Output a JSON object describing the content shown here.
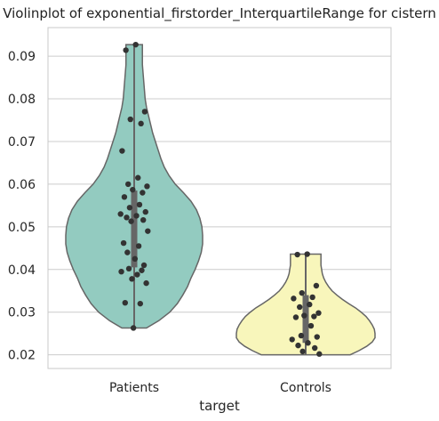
{
  "chart_data": {
    "type": "violin",
    "title": "Violinplot of exponential_firstorder_InterquartileRange for cistern",
    "xlabel": "target",
    "ylabel": "",
    "categories": [
      "Patients",
      "Controls"
    ],
    "ylim": [
      0.0168,
      0.0967
    ],
    "yticks": [
      0.02,
      0.03,
      0.04,
      0.05,
      0.06,
      0.07,
      0.08,
      0.09
    ],
    "ytick_labels": [
      "0.02",
      "0.03",
      "0.04",
      "0.05",
      "0.06",
      "0.07",
      "0.08",
      "0.09"
    ],
    "grid": "horizontal",
    "colors": {
      "Patients": "#93cbc0",
      "Controls": "#f8f6bb",
      "outline": "#666666",
      "points": "#333333",
      "grid": "#cccccc"
    },
    "series": [
      {
        "category": "Patients",
        "density_profile": [
          [
            0.0263,
            0.18
          ],
          [
            0.028,
            0.36
          ],
          [
            0.03,
            0.52
          ],
          [
            0.032,
            0.63
          ],
          [
            0.034,
            0.71
          ],
          [
            0.036,
            0.78
          ],
          [
            0.038,
            0.83
          ],
          [
            0.04,
            0.89
          ],
          [
            0.042,
            0.94
          ],
          [
            0.044,
            0.98
          ],
          [
            0.046,
            1.0
          ],
          [
            0.048,
            1.0
          ],
          [
            0.05,
            0.99
          ],
          [
            0.052,
            0.96
          ],
          [
            0.054,
            0.91
          ],
          [
            0.056,
            0.83
          ],
          [
            0.058,
            0.72
          ],
          [
            0.06,
            0.6
          ],
          [
            0.062,
            0.51
          ],
          [
            0.064,
            0.44
          ],
          [
            0.066,
            0.39
          ],
          [
            0.068,
            0.35
          ],
          [
            0.07,
            0.31
          ],
          [
            0.072,
            0.27
          ],
          [
            0.074,
            0.24
          ],
          [
            0.076,
            0.21
          ],
          [
            0.078,
            0.18
          ],
          [
            0.08,
            0.16
          ],
          [
            0.082,
            0.15
          ],
          [
            0.084,
            0.14
          ],
          [
            0.086,
            0.13
          ],
          [
            0.088,
            0.12
          ],
          [
            0.09,
            0.12
          ],
          [
            0.0927,
            0.12
          ]
        ],
        "whisker": [
          0.0263,
          0.0927
        ],
        "iqr": [
          0.0405,
          0.0585
        ],
        "points": [
          0.0927,
          0.0914,
          0.077,
          0.0752,
          0.0742,
          0.0678,
          0.0615,
          0.06,
          0.0595,
          0.0587,
          0.058,
          0.057,
          0.0552,
          0.0545,
          0.0535,
          0.053,
          0.0526,
          0.0522,
          0.0516,
          0.0513,
          0.049,
          0.0462,
          0.0455,
          0.044,
          0.0425,
          0.041,
          0.0402,
          0.0398,
          0.0395,
          0.0388,
          0.0378,
          0.0368,
          0.0322,
          0.032,
          0.0263
        ]
      },
      {
        "category": "Controls",
        "density_profile": [
          [
            0.02,
            0.64
          ],
          [
            0.021,
            0.77
          ],
          [
            0.022,
            0.88
          ],
          [
            0.023,
            0.96
          ],
          [
            0.024,
            1.0
          ],
          [
            0.025,
            1.0
          ],
          [
            0.026,
            0.99
          ],
          [
            0.027,
            0.96
          ],
          [
            0.028,
            0.92
          ],
          [
            0.029,
            0.87
          ],
          [
            0.03,
            0.8
          ],
          [
            0.031,
            0.72
          ],
          [
            0.032,
            0.62
          ],
          [
            0.033,
            0.53
          ],
          [
            0.034,
            0.45
          ],
          [
            0.035,
            0.38
          ],
          [
            0.036,
            0.33
          ],
          [
            0.037,
            0.29
          ],
          [
            0.038,
            0.26
          ],
          [
            0.039,
            0.24
          ],
          [
            0.04,
            0.23
          ],
          [
            0.041,
            0.22
          ],
          [
            0.042,
            0.22
          ],
          [
            0.0436,
            0.22
          ]
        ],
        "whisker": [
          0.02,
          0.0436
        ],
        "iqr": [
          0.0228,
          0.034
        ],
        "points": [
          0.0436,
          0.0435,
          0.0362,
          0.0345,
          0.0335,
          0.0332,
          0.0318,
          0.0312,
          0.0298,
          0.0292,
          0.029,
          0.0288,
          0.0268,
          0.0245,
          0.0242,
          0.0236,
          0.0228,
          0.0222,
          0.0216,
          0.0208,
          0.0202
        ]
      }
    ]
  }
}
